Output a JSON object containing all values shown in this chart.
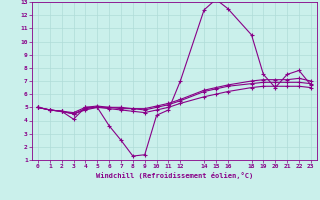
{
  "xlabel": "Windchill (Refroidissement éolien,°C)",
  "bg_color": "#caf0eb",
  "grid_color": "#b0dcd8",
  "line_color": "#880088",
  "marker": "+",
  "markersize": 3.5,
  "linewidth": 0.8,
  "xlim": [
    -0.5,
    23.5
  ],
  "ylim": [
    1,
    13
  ],
  "xticks": [
    0,
    1,
    2,
    3,
    4,
    5,
    6,
    7,
    8,
    9,
    10,
    11,
    12,
    14,
    15,
    16,
    18,
    19,
    20,
    21,
    22,
    23
  ],
  "yticks": [
    1,
    2,
    3,
    4,
    5,
    6,
    7,
    8,
    9,
    10,
    11,
    12,
    13
  ],
  "series": [
    {
      "x": [
        0,
        1,
        2,
        3,
        4,
        5,
        6,
        7,
        8,
        9,
        10,
        11,
        12,
        14,
        15,
        16,
        18,
        19,
        20,
        21,
        22,
        23
      ],
      "y": [
        5.0,
        4.8,
        4.7,
        4.1,
        5.0,
        5.0,
        3.6,
        2.5,
        1.3,
        1.4,
        4.4,
        4.8,
        7.0,
        12.4,
        13.2,
        12.5,
        10.5,
        7.5,
        6.5,
        7.5,
        7.8,
        6.7
      ]
    },
    {
      "x": [
        0,
        1,
        2,
        3,
        4,
        5,
        6,
        7,
        8,
        9,
        10,
        11,
        12,
        14,
        15,
        16,
        18,
        19,
        20,
        21,
        22,
        23
      ],
      "y": [
        5.0,
        4.8,
        4.7,
        4.5,
        4.8,
        5.0,
        4.9,
        4.8,
        4.7,
        4.6,
        4.8,
        5.0,
        5.3,
        5.8,
        6.0,
        6.2,
        6.5,
        6.6,
        6.6,
        6.6,
        6.6,
        6.5
      ]
    },
    {
      "x": [
        0,
        1,
        2,
        3,
        4,
        5,
        6,
        7,
        8,
        9,
        10,
        11,
        12,
        14,
        15,
        16,
        18,
        19,
        20,
        21,
        22,
        23
      ],
      "y": [
        5.0,
        4.8,
        4.7,
        4.5,
        4.9,
        5.0,
        5.0,
        4.9,
        4.9,
        4.8,
        5.0,
        5.2,
        5.5,
        6.2,
        6.4,
        6.6,
        6.8,
        6.9,
        6.9,
        6.9,
        6.9,
        6.8
      ]
    },
    {
      "x": [
        0,
        1,
        2,
        3,
        4,
        5,
        6,
        7,
        8,
        9,
        10,
        11,
        12,
        14,
        15,
        16,
        18,
        19,
        20,
        21,
        22,
        23
      ],
      "y": [
        5.0,
        4.8,
        4.7,
        4.6,
        5.0,
        5.1,
        5.0,
        5.0,
        4.9,
        4.9,
        5.1,
        5.3,
        5.6,
        6.3,
        6.5,
        6.7,
        7.0,
        7.1,
        7.1,
        7.1,
        7.2,
        7.0
      ]
    }
  ]
}
